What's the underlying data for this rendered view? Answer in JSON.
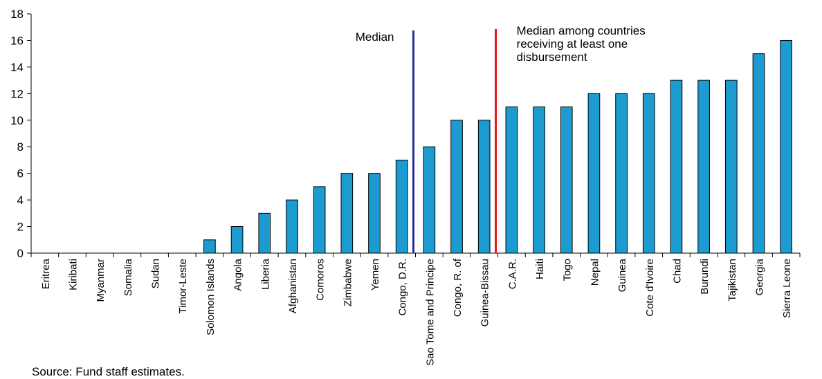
{
  "chart_data": {
    "type": "bar",
    "title": "",
    "xlabel": "",
    "ylabel": "",
    "ylim": [
      0,
      18
    ],
    "yticks": [
      0,
      2,
      4,
      6,
      8,
      10,
      12,
      14,
      16,
      18
    ],
    "grid": false,
    "bar_color": "#1c9bd1",
    "categories": [
      "Eritrea",
      "Kiribati",
      "Myanmar",
      "Somalia",
      "Sudan",
      "Timor-Leste",
      "Solomon Islands",
      "Angola",
      "Liberia",
      "Afghanistan",
      "Comoros",
      "Zimbabwe",
      "Yemen",
      "Congo, D.R.",
      "Sao Tome and Principe",
      "Congo, R. of",
      "Guinea-Bissau",
      "C.A.R.",
      "Haiti",
      "Togo",
      "Nepal",
      "Guinea",
      "Cote d'Ivoire",
      "Chad",
      "Burundi",
      "Tajikistan",
      "Georgia",
      "Sierra Leone"
    ],
    "values": [
      0,
      0,
      0,
      0,
      0,
      0,
      1,
      2,
      3,
      4,
      5,
      6,
      6,
      7,
      8,
      10,
      10,
      11,
      11,
      11,
      12,
      12,
      12,
      13,
      13,
      13,
      15,
      16
    ],
    "annotations": [
      {
        "text": "Median",
        "after_category_index": 13,
        "color": "#2b2b9b"
      },
      {
        "text": "Median among countries receiving at least one disbursement",
        "after_category_index": 16,
        "color": "#e8141c"
      }
    ]
  },
  "source_note": "Source: Fund staff estimates."
}
